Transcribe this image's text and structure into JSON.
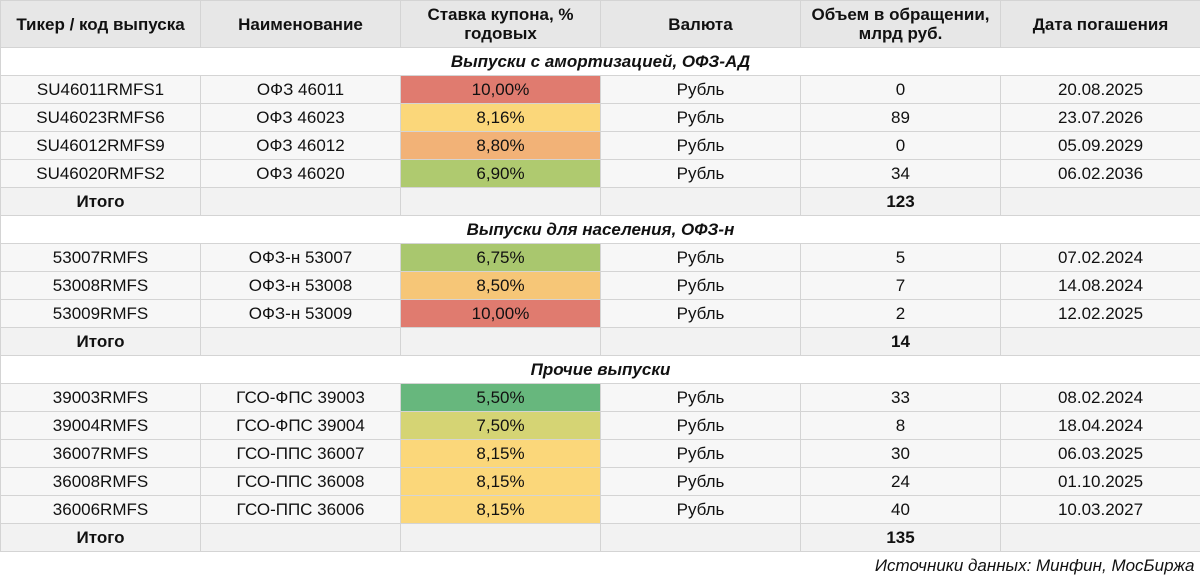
{
  "header": {
    "ticker": "Тикер / код выпуска",
    "name": "Наименование",
    "coupon": "Ставка купона, % годовых",
    "currency": "Валюта",
    "volume": "Объем в обращении, млрд руб.",
    "maturity": "Дата погашения"
  },
  "sections": [
    {
      "title": "Выпуски с амортизацией, ОФЗ-АД",
      "rows": [
        {
          "ticker": "SU46011RMFS1",
          "name": "ОФЗ 46011",
          "coupon": "10,00%",
          "coupon_color": "#e07b6f",
          "currency": "Рубль",
          "volume": "0",
          "maturity": "20.08.2025"
        },
        {
          "ticker": "SU46023RMFS6",
          "name": "ОФЗ 46023",
          "coupon": "8,16%",
          "coupon_color": "#fbd77a",
          "currency": "Рубль",
          "volume": "89",
          "maturity": "23.07.2026"
        },
        {
          "ticker": "SU46012RMFS9",
          "name": "ОФЗ 46012",
          "coupon": "8,80%",
          "coupon_color": "#f2b277",
          "currency": "Рубль",
          "volume": "0",
          "maturity": "05.09.2029"
        },
        {
          "ticker": "SU46020RMFS2",
          "name": "ОФЗ 46020",
          "coupon": "6,90%",
          "coupon_color": "#afca6f",
          "currency": "Рубль",
          "volume": "34",
          "maturity": "06.02.2036"
        }
      ],
      "total_label": "Итого",
      "total_volume": "123"
    },
    {
      "title": "Выпуски для населения, ОФЗ-н",
      "rows": [
        {
          "ticker": "53007RMFS",
          "name": "ОФЗ-н 53007",
          "coupon": "6,75%",
          "coupon_color": "#a9c76e",
          "currency": "Рубль",
          "volume": "5",
          "maturity": "07.02.2024"
        },
        {
          "ticker": "53008RMFS",
          "name": "ОФЗ-н 53008",
          "coupon": "8,50%",
          "coupon_color": "#f6c677",
          "currency": "Рубль",
          "volume": "7",
          "maturity": "14.08.2024"
        },
        {
          "ticker": "53009RMFS",
          "name": "ОФЗ-н 53009",
          "coupon": "10,00%",
          "coupon_color": "#e07b6f",
          "currency": "Рубль",
          "volume": "2",
          "maturity": "12.02.2025"
        }
      ],
      "total_label": "Итого",
      "total_volume": "14"
    },
    {
      "title": "Прочие выпуски",
      "rows": [
        {
          "ticker": "39003RMFS",
          "name": "ГСО-ФПС 39003",
          "coupon": "5,50%",
          "coupon_color": "#67b77d",
          "currency": "Рубль",
          "volume": "33",
          "maturity": "08.02.2024"
        },
        {
          "ticker": "39004RMFS",
          "name": "ГСО-ФПС 39004",
          "coupon": "7,50%",
          "coupon_color": "#d5d474",
          "currency": "Рубль",
          "volume": "8",
          "maturity": "18.04.2024"
        },
        {
          "ticker": "36007RMFS",
          "name": "ГСО-ППС 36007",
          "coupon": "8,15%",
          "coupon_color": "#fbd77a",
          "currency": "Рубль",
          "volume": "30",
          "maturity": "06.03.2025"
        },
        {
          "ticker": "36008RMFS",
          "name": "ГСО-ППС 36008",
          "coupon": "8,15%",
          "coupon_color": "#fbd77a",
          "currency": "Рубль",
          "volume": "24",
          "maturity": "01.10.2025"
        },
        {
          "ticker": "36006RMFS",
          "name": "ГСО-ППС 36006",
          "coupon": "8,15%",
          "coupon_color": "#fbd77a",
          "currency": "Рубль",
          "volume": "40",
          "maturity": "10.03.2027"
        }
      ],
      "total_label": "Итого",
      "total_volume": "135"
    }
  ],
  "source": "Источники данных: Минфин, МосБиржа"
}
